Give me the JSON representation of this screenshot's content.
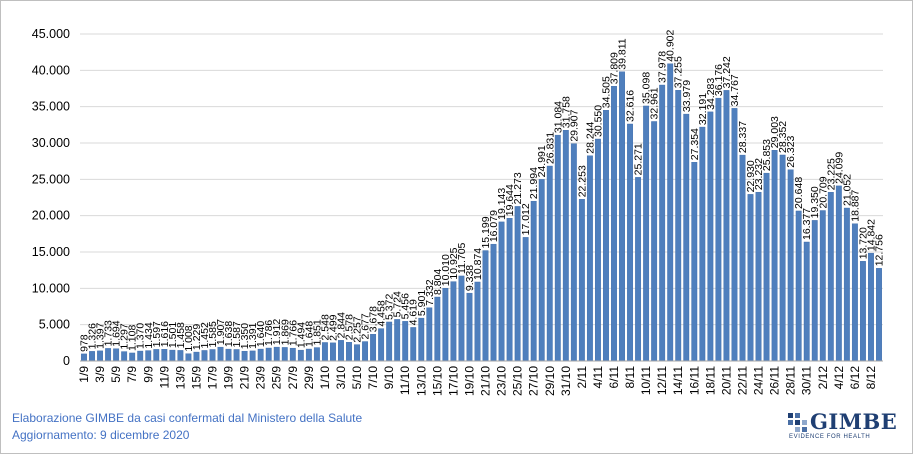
{
  "footer": {
    "line1": "Elaborazione GIMBE da casi confermati dal Ministero della Salute",
    "line2": "Aggiornamento: 9 dicembre 2020"
  },
  "logo": {
    "name": "GIMBE",
    "tagline": "EVIDENCE FOR HEALTH",
    "color": "#1f3f73"
  },
  "colors": {
    "bar": "#4f7fbd",
    "bar_edge": "#3a69a8",
    "grid": "#d9d9d9",
    "axis_text": "#000000",
    "footer_text": "#4472c4"
  },
  "chart_data": {
    "type": "bar",
    "title": "",
    "xlabel": "",
    "ylabel": "",
    "ylim": [
      0,
      45000
    ],
    "yticks": [
      0,
      5000,
      10000,
      15000,
      20000,
      25000,
      30000,
      35000,
      40000,
      45000
    ],
    "ytick_labels": [
      "0",
      "5.000",
      "10.000",
      "15.000",
      "20.000",
      "25.000",
      "30.000",
      "35.000",
      "40.000",
      "45.000"
    ],
    "grid": true,
    "legend": "none",
    "categories": [
      "1/9",
      "2/9",
      "3/9",
      "4/9",
      "5/9",
      "6/9",
      "7/9",
      "8/9",
      "9/9",
      "10/9",
      "11/9",
      "12/9",
      "13/9",
      "14/9",
      "15/9",
      "16/9",
      "17/9",
      "18/9",
      "19/9",
      "20/9",
      "21/9",
      "22/9",
      "23/9",
      "24/9",
      "25/9",
      "26/9",
      "27/9",
      "28/9",
      "29/9",
      "30/9",
      "1/10",
      "2/10",
      "3/10",
      "4/10",
      "5/10",
      "6/10",
      "7/10",
      "8/10",
      "9/10",
      "10/10",
      "11/10",
      "12/10",
      "13/10",
      "14/10",
      "15/10",
      "16/10",
      "17/10",
      "18/10",
      "19/10",
      "20/10",
      "21/10",
      "22/10",
      "23/10",
      "24/10",
      "25/10",
      "26/10",
      "27/10",
      "28/10",
      "29/10",
      "30/10",
      "31/10",
      "1/11",
      "2/11",
      "3/11",
      "4/11",
      "5/11",
      "6/11",
      "7/11",
      "8/11",
      "9/11",
      "10/11",
      "11/11",
      "12/11",
      "13/11",
      "14/11",
      "15/11",
      "16/11",
      "17/11",
      "18/11",
      "19/11",
      "20/11",
      "21/11",
      "22/11",
      "23/11",
      "24/11",
      "25/11",
      "26/11",
      "27/11",
      "28/11",
      "29/11",
      "30/11",
      "1/12",
      "2/12",
      "3/12",
      "4/12",
      "5/12",
      "6/12",
      "7/12",
      "8/12",
      "9/12"
    ],
    "xtick_labels": [
      "1/9",
      "3/9",
      "5/9",
      "7/9",
      "9/9",
      "11/9",
      "13/9",
      "15/9",
      "17/9",
      "19/9",
      "21/9",
      "23/9",
      "25/9",
      "27/9",
      "29/9",
      "1/10",
      "3/10",
      "5/10",
      "7/10",
      "9/10",
      "11/10",
      "13/10",
      "15/10",
      "17/10",
      "19/10",
      "21/10",
      "23/10",
      "25/10",
      "27/10",
      "29/10",
      "31/10",
      "2/11",
      "4/11",
      "6/11",
      "8/11",
      "10/11",
      "12/11",
      "14/11",
      "16/11",
      "18/11",
      "20/11",
      "22/11",
      "24/11",
      "26/11",
      "28/11",
      "30/11",
      "2/12",
      "4/12",
      "6/12",
      "8/12"
    ],
    "values": [
      978,
      1326,
      1397,
      1733,
      1694,
      1297,
      1108,
      1370,
      1434,
      1597,
      1616,
      1501,
      1458,
      1008,
      1229,
      1452,
      1585,
      1907,
      1638,
      1587,
      1350,
      1391,
      1640,
      1786,
      1912,
      1869,
      1766,
      1494,
      1648,
      1851,
      2548,
      2499,
      2844,
      2578,
      2257,
      2677,
      3678,
      4458,
      5372,
      5724,
      5456,
      4619,
      5901,
      7332,
      8804,
      10010,
      10925,
      11705,
      9338,
      10874,
      15199,
      16079,
      19143,
      19644,
      21273,
      17012,
      21994,
      24991,
      26831,
      31084,
      31758,
      29907,
      22253,
      28244,
      30550,
      34505,
      37809,
      39811,
      32616,
      25271,
      35098,
      32961,
      37978,
      40902,
      37255,
      33979,
      27354,
      32191,
      34283,
      36176,
      37242,
      34767,
      28337,
      22930,
      23232,
      25853,
      29003,
      28352,
      26323,
      20648,
      16377,
      19350,
      20709,
      23225,
      24099,
      21052,
      18887,
      13720,
      14842,
      12756
    ],
    "labels": [
      "978",
      "1.326",
      "1.397",
      "1.733",
      "1.694",
      "1.297",
      "1.108",
      "1.370",
      "1.434",
      "1.597",
      "1.616",
      "1.501",
      "1.458",
      "1.008",
      "1.229",
      "1.452",
      "1.585",
      "1.907",
      "1.638",
      "1.587",
      "1.350",
      "1.391",
      "1.640",
      "1.786",
      "1.912",
      "1.869",
      "1.766",
      "1.494",
      "1.648",
      "1.851",
      "2.548",
      "2.499",
      "2.844",
      "2.578",
      "2.257",
      "2.677",
      "3.678",
      "4.458",
      "5.372",
      "5.724",
      "5.456",
      "4.619",
      "5.901",
      "7.332",
      "8.804",
      "10.010",
      "10.925",
      "11.705",
      "9.338",
      "10.874",
      "15.199",
      "16.079",
      "19.143",
      "19.644",
      "21.273",
      "17.012",
      "21.994",
      "24.991",
      "26.831",
      "31.084",
      "31.758",
      "29.907",
      "22.253",
      "28.244",
      "30.550",
      "34.505",
      "37.809",
      "39.811",
      "32.616",
      "25.271",
      "35.098",
      "32.961",
      "37.978",
      "40.902",
      "37.255",
      "33.979",
      "27.354",
      "32.191",
      "34.283",
      "36.176",
      "37.242",
      "34.767",
      "28.337",
      "22.930",
      "23.232",
      "25.853",
      "29.003",
      "28.352",
      "26.323",
      "20.648",
      "16.377",
      "19.350",
      "20.709",
      "23.225",
      "24.099",
      "21.052",
      "18.887",
      "13.720",
      "14.842",
      "12.756"
    ]
  }
}
